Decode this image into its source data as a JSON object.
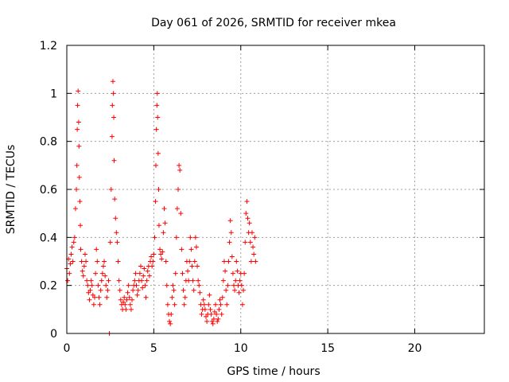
{
  "chart_data": {
    "type": "scatter",
    "title": "Day 061 of 2026, SRMTID for receiver mkea",
    "xlabel": "GPS time / hours",
    "ylabel": "SRMTID / TECUs",
    "xlim": [
      0,
      24
    ],
    "ylim": [
      0,
      1.2
    ],
    "xticks": [
      0,
      5,
      10,
      15,
      20
    ],
    "yticks": [
      0,
      0.2,
      0.4,
      0.6,
      0.8,
      1,
      1.2
    ],
    "ytick_labels": [
      "0",
      "0.2",
      "0.4",
      "0.6",
      "0.8",
      "1",
      "1.2"
    ],
    "grid": true,
    "marker": "+",
    "color": "#ff0000",
    "series": [
      {
        "name": "SRMTID",
        "points": [
          [
            0.0,
            0.27
          ],
          [
            0.05,
            0.22
          ],
          [
            0.1,
            0.31
          ],
          [
            0.15,
            0.25
          ],
          [
            0.2,
            0.29
          ],
          [
            0.25,
            0.33
          ],
          [
            0.3,
            0.36
          ],
          [
            0.35,
            0.3
          ],
          [
            0.4,
            0.38
          ],
          [
            0.45,
            0.4
          ],
          [
            0.5,
            0.52
          ],
          [
            0.55,
            0.6
          ],
          [
            0.58,
            0.7
          ],
          [
            0.6,
            0.85
          ],
          [
            0.62,
            0.95
          ],
          [
            0.65,
            1.01
          ],
          [
            0.68,
            0.88
          ],
          [
            0.7,
            0.78
          ],
          [
            0.72,
            0.65
          ],
          [
            0.75,
            0.55
          ],
          [
            0.78,
            0.45
          ],
          [
            0.8,
            0.35
          ],
          [
            0.85,
            0.3
          ],
          [
            0.9,
            0.26
          ],
          [
            0.95,
            0.24
          ],
          [
            1.0,
            0.28
          ],
          [
            1.05,
            0.33
          ],
          [
            1.1,
            0.3
          ],
          [
            1.15,
            0.22
          ],
          [
            1.2,
            0.2
          ],
          [
            1.25,
            0.17
          ],
          [
            1.3,
            0.14
          ],
          [
            1.35,
            0.18
          ],
          [
            1.4,
            0.22
          ],
          [
            1.45,
            0.2
          ],
          [
            1.5,
            0.16
          ],
          [
            1.55,
            0.12
          ],
          [
            1.6,
            0.15
          ],
          [
            1.65,
            0.25
          ],
          [
            1.7,
            0.35
          ],
          [
            1.75,
            0.3
          ],
          [
            1.8,
            0.2
          ],
          [
            1.85,
            0.15
          ],
          [
            1.9,
            0.12
          ],
          [
            1.95,
            0.18
          ],
          [
            2.0,
            0.22
          ],
          [
            2.05,
            0.25
          ],
          [
            2.1,
            0.28
          ],
          [
            2.15,
            0.3
          ],
          [
            2.2,
            0.24
          ],
          [
            2.25,
            0.2
          ],
          [
            2.3,
            0.15
          ],
          [
            2.35,
            0.18
          ],
          [
            2.4,
            0.22
          ],
          [
            2.45,
            0.0
          ],
          [
            2.5,
            0.38
          ],
          [
            2.55,
            0.6
          ],
          [
            2.6,
            0.82
          ],
          [
            2.62,
            0.95
          ],
          [
            2.65,
            1.05
          ],
          [
            2.68,
            1.0
          ],
          [
            2.7,
            0.9
          ],
          [
            2.72,
            0.72
          ],
          [
            2.75,
            0.56
          ],
          [
            2.8,
            0.48
          ],
          [
            2.85,
            0.42
          ],
          [
            2.9,
            0.38
          ],
          [
            2.95,
            0.3
          ],
          [
            3.0,
            0.22
          ],
          [
            3.05,
            0.18
          ],
          [
            3.1,
            0.14
          ],
          [
            3.15,
            0.12
          ],
          [
            3.2,
            0.1
          ],
          [
            3.25,
            0.13
          ],
          [
            3.3,
            0.15
          ],
          [
            3.35,
            0.12
          ],
          [
            3.4,
            0.1
          ],
          [
            3.45,
            0.14
          ],
          [
            3.5,
            0.17
          ],
          [
            3.55,
            0.2
          ],
          [
            3.6,
            0.15
          ],
          [
            3.65,
            0.12
          ],
          [
            3.7,
            0.1
          ],
          [
            3.75,
            0.14
          ],
          [
            3.8,
            0.18
          ],
          [
            3.85,
            0.2
          ],
          [
            3.9,
            0.22
          ],
          [
            3.95,
            0.25
          ],
          [
            4.0,
            0.2
          ],
          [
            4.05,
            0.16
          ],
          [
            4.1,
            0.18
          ],
          [
            4.15,
            0.22
          ],
          [
            4.2,
            0.25
          ],
          [
            4.25,
            0.28
          ],
          [
            4.3,
            0.22
          ],
          [
            4.35,
            0.19
          ],
          [
            4.4,
            0.24
          ],
          [
            4.45,
            0.27
          ],
          [
            4.5,
            0.2
          ],
          [
            4.55,
            0.15
          ],
          [
            4.6,
            0.22
          ],
          [
            4.65,
            0.26
          ],
          [
            4.7,
            0.28
          ],
          [
            4.75,
            0.24
          ],
          [
            4.8,
            0.3
          ],
          [
            4.85,
            0.32
          ],
          [
            4.9,
            0.28
          ],
          [
            4.95,
            0.3
          ],
          [
            5.0,
            0.33
          ],
          [
            5.05,
            0.4
          ],
          [
            5.1,
            0.55
          ],
          [
            5.12,
            0.7
          ],
          [
            5.15,
            0.85
          ],
          [
            5.18,
            0.95
          ],
          [
            5.2,
            1.0
          ],
          [
            5.22,
            0.9
          ],
          [
            5.25,
            0.75
          ],
          [
            5.28,
            0.6
          ],
          [
            5.3,
            0.45
          ],
          [
            5.35,
            0.35
          ],
          [
            5.4,
            0.33
          ],
          [
            5.45,
            0.31
          ],
          [
            5.5,
            0.34
          ],
          [
            5.55,
            0.42
          ],
          [
            5.6,
            0.52
          ],
          [
            5.65,
            0.46
          ],
          [
            5.7,
            0.3
          ],
          [
            5.75,
            0.2
          ],
          [
            5.8,
            0.12
          ],
          [
            5.85,
            0.08
          ],
          [
            5.9,
            0.05
          ],
          [
            5.95,
            0.04
          ],
          [
            6.0,
            0.08
          ],
          [
            6.05,
            0.15
          ],
          [
            6.1,
            0.2
          ],
          [
            6.15,
            0.18
          ],
          [
            6.2,
            0.12
          ],
          [
            6.25,
            0.25
          ],
          [
            6.3,
            0.4
          ],
          [
            6.35,
            0.52
          ],
          [
            6.4,
            0.6
          ],
          [
            6.45,
            0.7
          ],
          [
            6.5,
            0.68
          ],
          [
            6.55,
            0.5
          ],
          [
            6.6,
            0.35
          ],
          [
            6.65,
            0.25
          ],
          [
            6.7,
            0.18
          ],
          [
            6.75,
            0.12
          ],
          [
            6.8,
            0.15
          ],
          [
            6.85,
            0.22
          ],
          [
            6.9,
            0.3
          ],
          [
            6.95,
            0.26
          ],
          [
            7.0,
            0.22
          ],
          [
            7.05,
            0.3
          ],
          [
            7.1,
            0.4
          ],
          [
            7.15,
            0.35
          ],
          [
            7.2,
            0.28
          ],
          [
            7.25,
            0.22
          ],
          [
            7.3,
            0.18
          ],
          [
            7.35,
            0.3
          ],
          [
            7.4,
            0.4
          ],
          [
            7.45,
            0.36
          ],
          [
            7.5,
            0.28
          ],
          [
            7.55,
            0.22
          ],
          [
            7.6,
            0.2
          ],
          [
            7.65,
            0.17
          ],
          [
            7.7,
            0.12
          ],
          [
            7.75,
            0.08
          ],
          [
            7.8,
            0.1
          ],
          [
            7.85,
            0.14
          ],
          [
            7.9,
            0.12
          ],
          [
            7.95,
            0.1
          ],
          [
            8.0,
            0.07
          ],
          [
            8.05,
            0.05
          ],
          [
            8.1,
            0.08
          ],
          [
            8.15,
            0.12
          ],
          [
            8.2,
            0.16
          ],
          [
            8.25,
            0.1
          ],
          [
            8.3,
            0.08
          ],
          [
            8.35,
            0.05
          ],
          [
            8.4,
            0.04
          ],
          [
            8.45,
            0.06
          ],
          [
            8.5,
            0.09
          ],
          [
            8.55,
            0.12
          ],
          [
            8.6,
            0.08
          ],
          [
            8.65,
            0.05
          ],
          [
            8.7,
            0.06
          ],
          [
            8.75,
            0.1
          ],
          [
            8.8,
            0.14
          ],
          [
            8.85,
            0.12
          ],
          [
            8.9,
            0.08
          ],
          [
            8.95,
            0.15
          ],
          [
            9.0,
            0.22
          ],
          [
            9.05,
            0.3
          ],
          [
            9.1,
            0.26
          ],
          [
            9.15,
            0.18
          ],
          [
            9.2,
            0.12
          ],
          [
            9.25,
            0.2
          ],
          [
            9.3,
            0.3
          ],
          [
            9.35,
            0.38
          ],
          [
            9.4,
            0.47
          ],
          [
            9.45,
            0.42
          ],
          [
            9.5,
            0.32
          ],
          [
            9.55,
            0.25
          ],
          [
            9.6,
            0.2
          ],
          [
            9.65,
            0.18
          ],
          [
            9.7,
            0.22
          ],
          [
            9.75,
            0.3
          ],
          [
            9.8,
            0.26
          ],
          [
            9.85,
            0.2
          ],
          [
            9.9,
            0.17
          ],
          [
            9.95,
            0.22
          ],
          [
            10.0,
            0.25
          ],
          [
            10.05,
            0.2
          ],
          [
            10.1,
            0.12
          ],
          [
            10.15,
            0.18
          ],
          [
            10.2,
            0.25
          ],
          [
            10.25,
            0.38
          ],
          [
            10.3,
            0.5
          ],
          [
            10.35,
            0.55
          ],
          [
            10.4,
            0.48
          ],
          [
            10.45,
            0.42
          ],
          [
            10.5,
            0.46
          ],
          [
            10.55,
            0.38
          ],
          [
            10.6,
            0.3
          ],
          [
            10.65,
            0.42
          ],
          [
            10.7,
            0.36
          ],
          [
            10.75,
            0.33
          ],
          [
            10.8,
            0.4
          ],
          [
            10.85,
            0.3
          ]
        ]
      }
    ]
  }
}
